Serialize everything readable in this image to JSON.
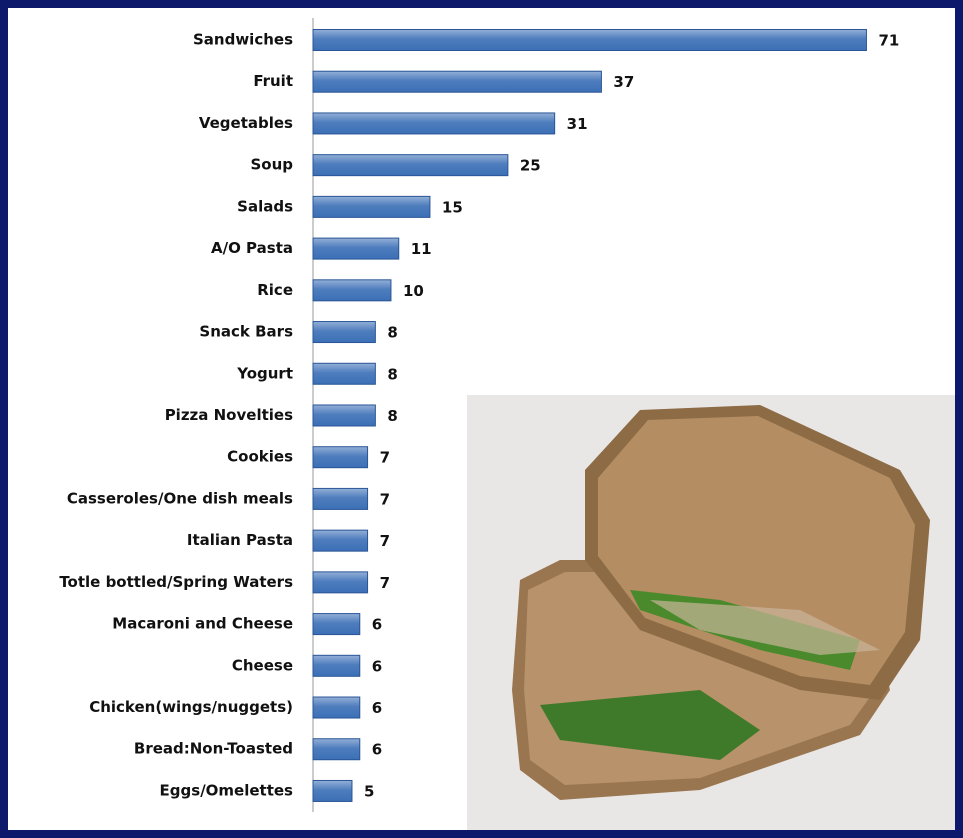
{
  "chart_data": {
    "type": "bar",
    "orientation": "horizontal",
    "categories": [
      "Sandwiches",
      "Fruit",
      "Vegetables",
      "Soup",
      "Salads",
      "A/O Pasta",
      "Rice",
      "Snack Bars",
      "Yogurt",
      "Pizza Novelties",
      "Cookies",
      "Casseroles/One dish meals",
      "Italian Pasta",
      "Totle bottled/Spring Waters",
      "Macaroni and Cheese",
      "Cheese",
      "Chicken(wings/nuggets)",
      "Bread:Non-Toasted",
      "Eggs/Omelettes"
    ],
    "values": [
      71,
      37,
      31,
      25,
      15,
      11,
      10,
      8,
      8,
      8,
      7,
      7,
      7,
      7,
      6,
      6,
      6,
      6,
      5
    ],
    "color": "#3b6fb6",
    "xlim": [
      0,
      83
    ]
  }
}
